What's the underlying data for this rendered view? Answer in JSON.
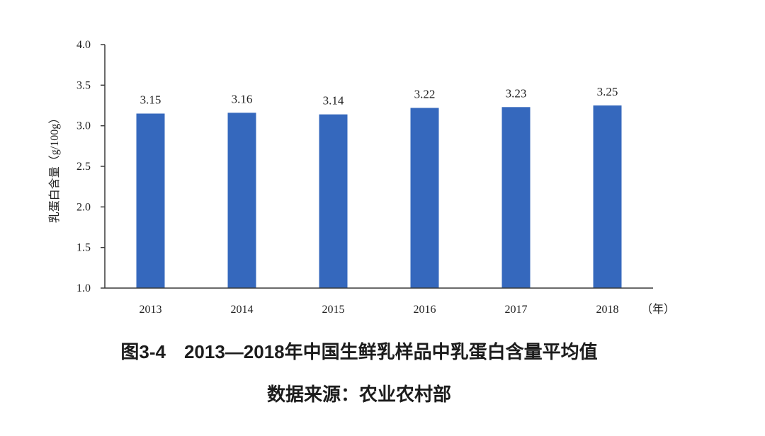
{
  "chart_data": {
    "type": "bar",
    "categories": [
      "2013",
      "2014",
      "2015",
      "2016",
      "2017",
      "2018"
    ],
    "values": [
      3.15,
      3.16,
      3.14,
      3.22,
      3.23,
      3.25
    ],
    "data_labels": [
      "3.15",
      "3.16",
      "3.14",
      "3.22",
      "3.23",
      "3.25"
    ],
    "title": "图3-4　2013—2018年中国生鲜乳样品中乳蛋白含量平均值",
    "xlabel": "",
    "xunit": "（年）",
    "ylabel": "乳蛋白含量（g/100g）",
    "ylim": [
      1.0,
      4.0
    ],
    "yticks": [
      "1.0",
      "1.5",
      "2.0",
      "2.5",
      "3.0",
      "3.5",
      "4.0"
    ],
    "grid": false,
    "legend": "none",
    "bar_color": "#3568BD"
  },
  "source": "数据来源：农业农村部"
}
